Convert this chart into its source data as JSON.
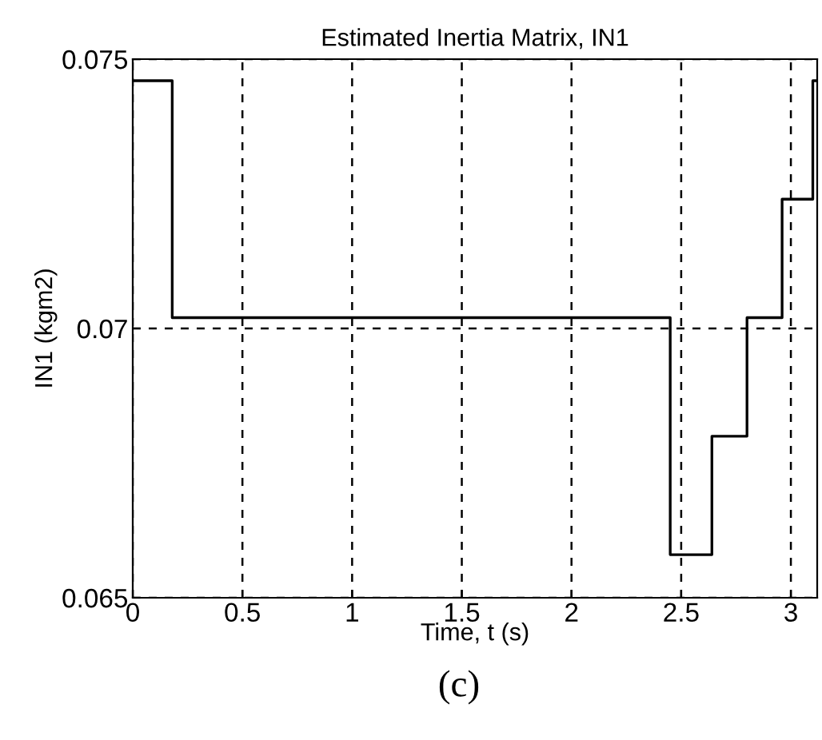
{
  "chart_data": {
    "type": "step",
    "title": "Estimated Inertia Matrix, IN1",
    "xlabel": "Time, t (s)",
    "ylabel": "IN1 (kgm2)",
    "annotations": [
      "(c)"
    ],
    "x": [
      0,
      0.18,
      2.45,
      2.64,
      2.8,
      2.96,
      3.1,
      3.12
    ],
    "series": [
      {
        "color": "#000000",
        "values": [
          0.0746,
          0.0702,
          0.0658,
          0.068,
          0.0702,
          0.0724,
          0.0746,
          0.0746
        ]
      }
    ],
    "xlim": [
      0,
      3.12
    ],
    "xticks": [
      0,
      0.5,
      1,
      1.5,
      2,
      2.5,
      3
    ],
    "ylim": [
      0.065,
      0.075
    ],
    "yticks": [
      0.065,
      0.07,
      0.075
    ],
    "grid": true,
    "line_style": "solid",
    "marker": "none"
  }
}
